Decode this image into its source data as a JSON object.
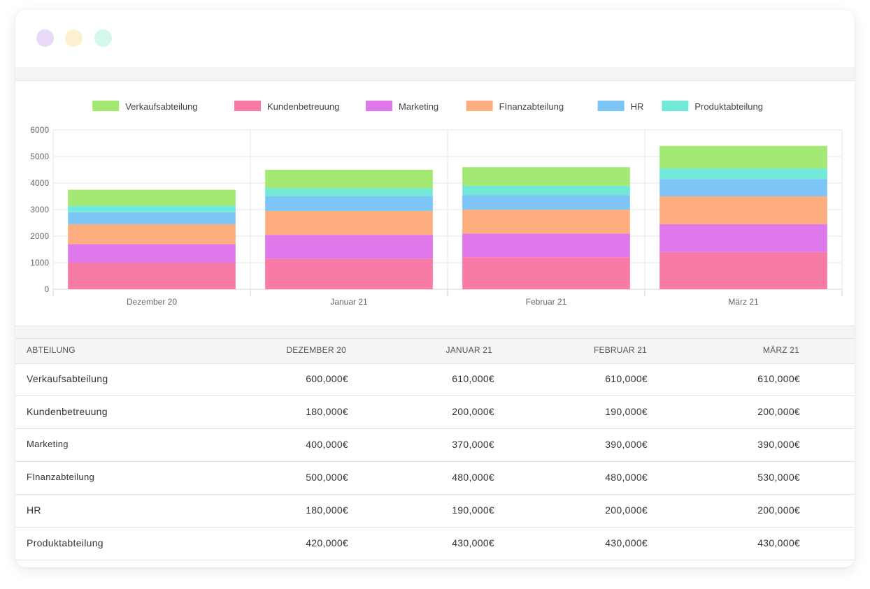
{
  "window": {
    "traffic_lights": [
      "#e8d9f7",
      "#fdf0cf",
      "#d5f8ec"
    ]
  },
  "chart_data": {
    "type": "bar",
    "stacked": true,
    "categories": [
      "Dezember 20",
      "Januar 21",
      "Februar 21",
      "März 21"
    ],
    "ylim": [
      0,
      6000
    ],
    "yticks": [
      "0",
      "1000",
      "2000",
      "3000",
      "4000",
      "5000",
      "6000"
    ],
    "grid": true,
    "legend_position": "top",
    "series": [
      {
        "name": "Verkaufsabteilung",
        "color": "#a3e872",
        "values": [
          600,
          700,
          700,
          850
        ]
      },
      {
        "name": "Kundenbetreuung",
        "color": "#f77aa7",
        "values": [
          1000,
          1150,
          1200,
          1400
        ]
      },
      {
        "name": "Marketing",
        "color": "#df78ea",
        "values": [
          700,
          900,
          900,
          1050
        ]
      },
      {
        "name": "FInanzabteilung",
        "color": "#fead7e",
        "values": [
          750,
          900,
          900,
          1050
        ]
      },
      {
        "name": "HR",
        "color": "#7ec5f7",
        "values": [
          450,
          550,
          550,
          650
        ]
      },
      {
        "name": "Produktabteilung",
        "color": "#72e8d9",
        "values": [
          250,
          300,
          350,
          400
        ]
      }
    ],
    "stack_order": [
      "Kundenbetreuung",
      "Marketing",
      "FInanzabteilung",
      "HR",
      "Produktabteilung",
      "Verkaufsabteilung"
    ]
  },
  "table": {
    "headers": [
      "ABTEILUNG",
      "DEZEMBER 20",
      "JANUAR 21",
      "FEBRUAR 21",
      "MÄRZ 21"
    ],
    "rows": [
      {
        "name": "Verkaufsabteilung",
        "values": [
          "600,000€",
          "610,000€",
          "610,000€",
          "610,000€"
        ]
      },
      {
        "name": "Kundenbetreuung",
        "values": [
          "180,000€",
          "200,000€",
          "190,000€",
          "200,000€"
        ]
      },
      {
        "name": "Marketing",
        "values": [
          "400,000€",
          "370,000€",
          "390,000€",
          "390,000€"
        ]
      },
      {
        "name": "FInanzabteilung",
        "values": [
          "500,000€",
          "480,000€",
          "480,000€",
          "530,000€"
        ]
      },
      {
        "name": "HR",
        "values": [
          "180,000€",
          "190,000€",
          "200,000€",
          "200,000€"
        ]
      },
      {
        "name": "Produktabteilung",
        "values": [
          "420,000€",
          "430,000€",
          "430,000€",
          "430,000€"
        ]
      }
    ]
  }
}
